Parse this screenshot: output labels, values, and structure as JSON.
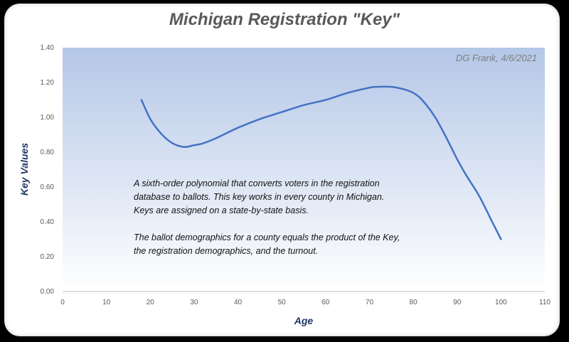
{
  "chart_data": {
    "type": "line",
    "title": "Michigan Registration \"Key\"",
    "xlabel": "Age",
    "ylabel": "Key Values",
    "xlim": [
      0,
      110
    ],
    "ylim": [
      0,
      1.4
    ],
    "x_ticks": [
      "0",
      "10",
      "20",
      "30",
      "40",
      "50",
      "60",
      "70",
      "80",
      "90",
      "100",
      "110"
    ],
    "y_ticks": [
      "0.00",
      "0.20",
      "0.40",
      "0.60",
      "0.80",
      "1.00",
      "1.20",
      "1.40"
    ],
    "grid": false,
    "series": [
      {
        "color": "#4472C4",
        "x": [
          18,
          20,
          22,
          24,
          26,
          28,
          30,
          32,
          35,
          40,
          45,
          50,
          55,
          60,
          65,
          70,
          72,
          75,
          78,
          80,
          82,
          85,
          88,
          90,
          92,
          95,
          98,
          100
        ],
        "y": [
          1.1,
          0.99,
          0.92,
          0.87,
          0.84,
          0.83,
          0.84,
          0.85,
          0.88,
          0.94,
          0.99,
          1.03,
          1.07,
          1.1,
          1.14,
          1.17,
          1.175,
          1.175,
          1.16,
          1.14,
          1.1,
          1.0,
          0.86,
          0.76,
          0.67,
          0.55,
          0.4,
          0.3
        ]
      }
    ],
    "annotations": {
      "credit": "DG Frank, 4/6/2021",
      "note_lines": [
        "A sixth-order polynomial that converts voters in the registration",
        "database to ballots. This key works in every county in Michigan.",
        "Keys are assigned on a state-by-state basis.",
        "",
        "The ballot demographics for a county equals the product of the Key,",
        "the registration demographics, and the turnout."
      ]
    }
  }
}
